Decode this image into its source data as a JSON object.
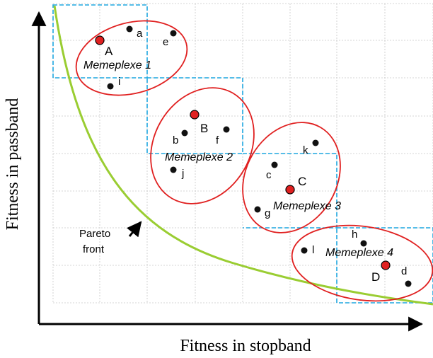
{
  "axes": {
    "x_title": "Fitness in stopband",
    "y_title": "Fitness in passband"
  },
  "annotation": {
    "line1": "Pareto",
    "line2": "front"
  },
  "colors": {
    "pareto_curve": "#9acd32",
    "memeplex_ellipse": "#e02020",
    "partition_box": "#1ea7e0",
    "grid": "#c8c8c8",
    "best_point": "#e02020",
    "point": "#111111"
  },
  "memeplexes": [
    {
      "label": "Memeplexe 1"
    },
    {
      "label": "Memeplexe 2"
    },
    {
      "label": "Memeplexe 3"
    },
    {
      "label": "Memeplexe 4"
    }
  ],
  "points": [
    {
      "label": "A",
      "best": true
    },
    {
      "label": "a",
      "best": false
    },
    {
      "label": "e",
      "best": false
    },
    {
      "label": "i",
      "best": false
    },
    {
      "label": "B",
      "best": true
    },
    {
      "label": "b",
      "best": false
    },
    {
      "label": "f",
      "best": false
    },
    {
      "label": "j",
      "best": false
    },
    {
      "label": "C",
      "best": true
    },
    {
      "label": "c",
      "best": false
    },
    {
      "label": "k",
      "best": false
    },
    {
      "label": "g",
      "best": false
    },
    {
      "label": "D",
      "best": true
    },
    {
      "label": "h",
      "best": false
    },
    {
      "label": "l",
      "best": false
    },
    {
      "label": "d",
      "best": false
    }
  ]
}
